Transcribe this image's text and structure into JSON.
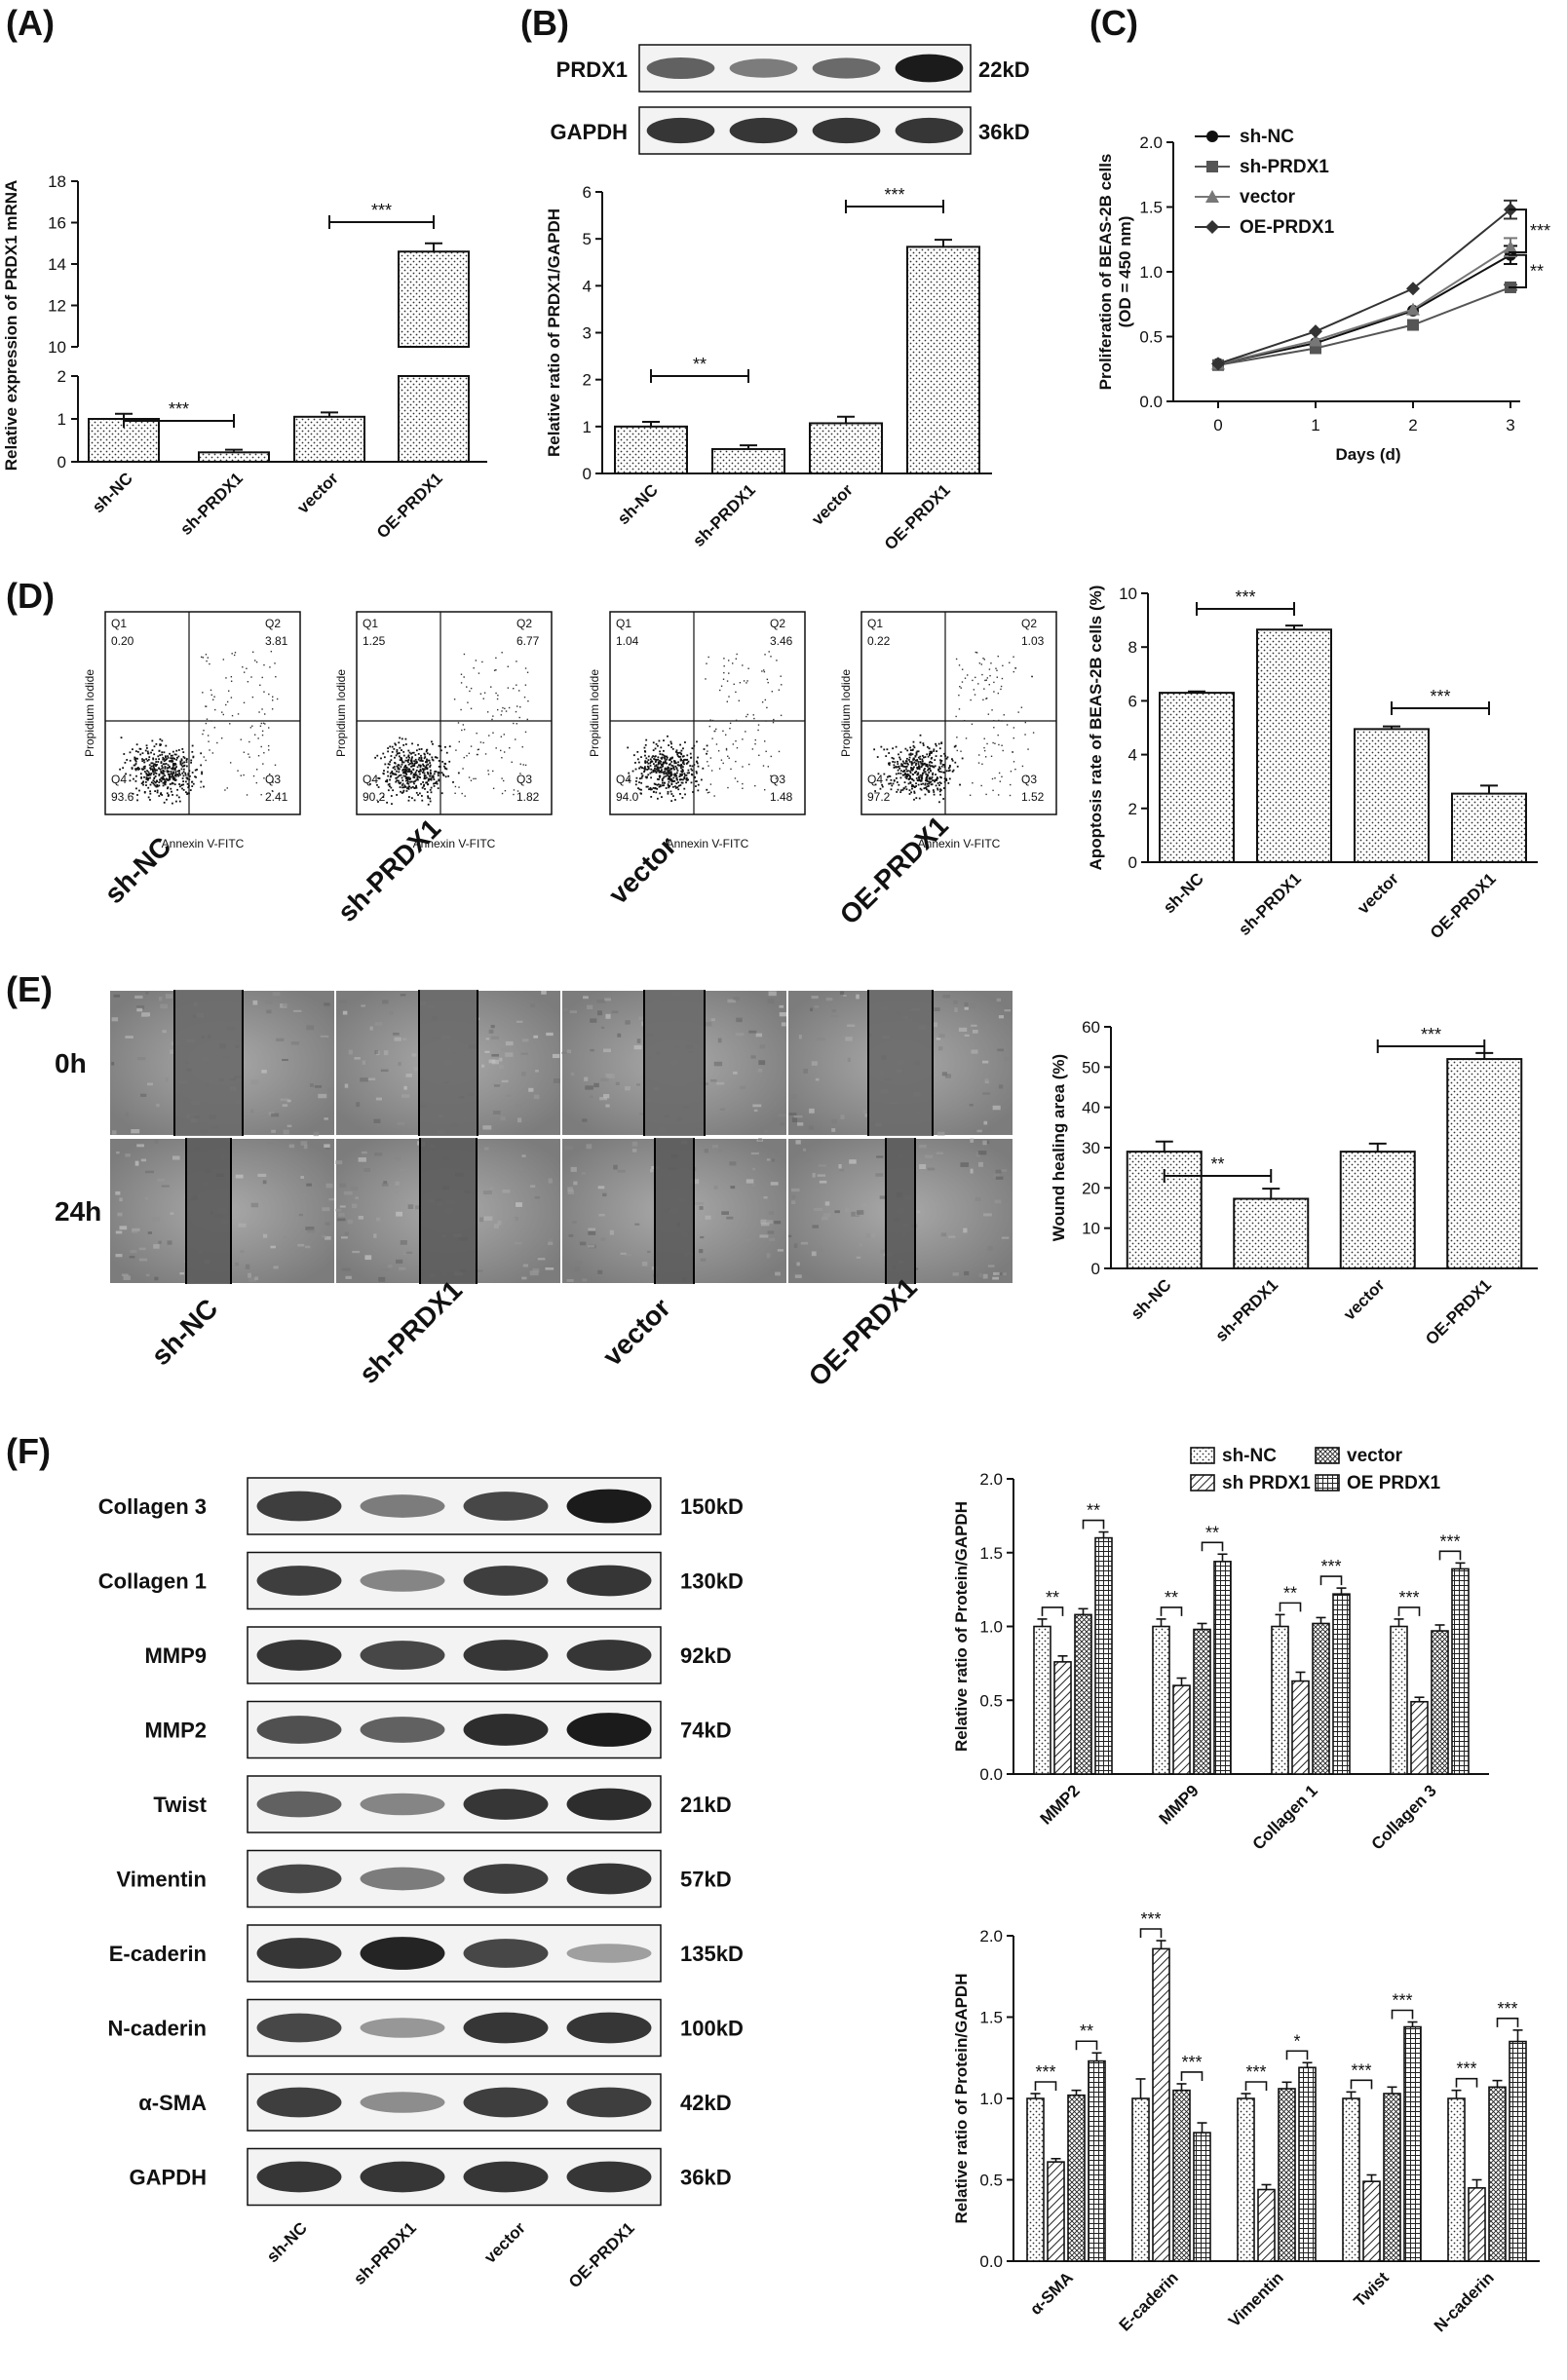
{
  "panels": {
    "A": "(A)",
    "B": "(B)",
    "C": "(C)",
    "D": "(D)",
    "E": "(E)",
    "F": "(F)"
  },
  "groups": [
    "sh-NC",
    "sh-PRDX1",
    "vector",
    "OE-PRDX1"
  ],
  "colors": {
    "ink": "#111111",
    "bar_fill": "#ffffff",
    "hatch": "#444444"
  },
  "blotB": {
    "bands": [
      {
        "name": "PRDX1",
        "kd": "22kD",
        "intensity": [
          0.6,
          0.45,
          0.55,
          1.0
        ]
      },
      {
        "name": "GAPDH",
        "kd": "36kD",
        "intensity": [
          0.85,
          0.85,
          0.85,
          0.85
        ]
      }
    ]
  },
  "flow": {
    "xlabel": "Annexin V-FITC",
    "ylabel": "Propidium Iodide",
    "quadrant_names": [
      "Q1",
      "Q2",
      "Q3",
      "Q4"
    ],
    "plots": [
      {
        "Q1": "0.20",
        "Q2": "3.81",
        "Q3": "2.41",
        "Q4": "93.6"
      },
      {
        "Q1": "1.25",
        "Q2": "6.77",
        "Q3": "1.82",
        "Q4": "90.2"
      },
      {
        "Q1": "1.04",
        "Q2": "3.46",
        "Q3": "1.48",
        "Q4": "94.0"
      },
      {
        "Q1": "0.22",
        "Q2": "1.03",
        "Q3": "1.52",
        "Q4": "97.2"
      }
    ]
  },
  "wound": {
    "rows": [
      "0h",
      "24h"
    ]
  },
  "blotF": {
    "bands": [
      {
        "name": "Collagen 3",
        "kd": "150kD",
        "intensity": [
          0.8,
          0.45,
          0.75,
          1.0
        ]
      },
      {
        "name": "Collagen 1",
        "kd": "130kD",
        "intensity": [
          0.8,
          0.4,
          0.8,
          0.85
        ]
      },
      {
        "name": "MMP9",
        "kd": "92kD",
        "intensity": [
          0.85,
          0.75,
          0.85,
          0.85
        ]
      },
      {
        "name": "MMP2",
        "kd": "74kD",
        "intensity": [
          0.7,
          0.6,
          0.9,
          1.0
        ]
      },
      {
        "name": "Twist",
        "kd": "21kD",
        "intensity": [
          0.6,
          0.4,
          0.85,
          0.9
        ]
      },
      {
        "name": "Vimentin",
        "kd": "57kD",
        "intensity": [
          0.75,
          0.45,
          0.8,
          0.85
        ]
      },
      {
        "name": "E-caderin",
        "kd": "135kD",
        "intensity": [
          0.85,
          0.95,
          0.75,
          0.25
        ]
      },
      {
        "name": "N-caderin",
        "kd": "100kD",
        "intensity": [
          0.75,
          0.3,
          0.85,
          0.85
        ]
      },
      {
        "name": "α-SMA",
        "kd": "42kD",
        "intensity": [
          0.8,
          0.35,
          0.8,
          0.8
        ]
      },
      {
        "name": "GAPDH",
        "kd": "36kD",
        "intensity": [
          0.85,
          0.85,
          0.85,
          0.85
        ]
      }
    ]
  },
  "chart_data": [
    {
      "id": "A",
      "type": "bar",
      "ylabel": "Relative expression of PRDX1 mRNA",
      "categories": [
        "sh-NC",
        "sh-PRDX1",
        "vector",
        "OE-PRDX1"
      ],
      "values": [
        1.0,
        0.22,
        1.05,
        14.6
      ],
      "errors": [
        0.12,
        0.06,
        0.1,
        0.4
      ],
      "axis_break": [
        2,
        10
      ],
      "yticks_lower": [
        "0",
        "1",
        "2"
      ],
      "yticks_upper": [
        "10",
        "12",
        "14",
        "16",
        "18"
      ],
      "significance": [
        {
          "from": 0,
          "to": 1,
          "label": "***"
        },
        {
          "from": 2,
          "to": 3,
          "label": "***"
        }
      ]
    },
    {
      "id": "B",
      "type": "bar",
      "ylabel": "Relative ratio of PRDX1/GAPDH",
      "categories": [
        "sh-NC",
        "sh-PRDX1",
        "vector",
        "OE-PRDX1"
      ],
      "values": [
        1.0,
        0.52,
        1.07,
        4.83
      ],
      "errors": [
        0.1,
        0.08,
        0.14,
        0.15
      ],
      "ylim": [
        0,
        6
      ],
      "yticks": [
        "0",
        "1",
        "2",
        "3",
        "4",
        "5",
        "6"
      ],
      "significance": [
        {
          "from": 0,
          "to": 1,
          "label": "**"
        },
        {
          "from": 2,
          "to": 3,
          "label": "***"
        }
      ]
    },
    {
      "id": "C",
      "type": "line",
      "ylabel": "Proliferation of BEAS-2B cells",
      "ylabel2": "(OD = 450 nm)",
      "xlabel": "Days (d)",
      "x": [
        0,
        1,
        2,
        3
      ],
      "xticks": [
        "0",
        "1",
        "2",
        "3"
      ],
      "ylim": [
        0,
        2.0
      ],
      "yticks": [
        "0.0",
        "0.5",
        "1.0",
        "1.5",
        "2.0"
      ],
      "series": [
        {
          "name": "sh-NC",
          "marker": "circle",
          "values": [
            0.29,
            0.45,
            0.7,
            1.13
          ],
          "errors": [
            0,
            0,
            0,
            0.07
          ]
        },
        {
          "name": "sh-PRDX1",
          "marker": "square",
          "values": [
            0.28,
            0.41,
            0.59,
            0.88
          ],
          "errors": [
            0,
            0,
            0,
            0.02
          ]
        },
        {
          "name": "vector",
          "marker": "triangle",
          "values": [
            0.29,
            0.47,
            0.71,
            1.19
          ],
          "errors": [
            0,
            0,
            0,
            0.07
          ]
        },
        {
          "name": "OE-PRDX1",
          "marker": "diamond",
          "values": [
            0.29,
            0.54,
            0.87,
            1.48
          ],
          "errors": [
            0,
            0,
            0,
            0.07
          ]
        }
      ],
      "significance": [
        "***",
        "**"
      ]
    },
    {
      "id": "D",
      "type": "bar",
      "ylabel": "Apoptosis rate of BEAS-2B cells (%)",
      "categories": [
        "sh-NC",
        "sh-PRDX1",
        "vector",
        "OE-PRDX1"
      ],
      "values": [
        6.3,
        8.65,
        4.95,
        2.55
      ],
      "errors": [
        0.05,
        0.15,
        0.1,
        0.3
      ],
      "ylim": [
        0,
        10
      ],
      "yticks": [
        "0",
        "2",
        "4",
        "6",
        "8",
        "10"
      ],
      "significance": [
        {
          "from": 0,
          "to": 1,
          "label": "***"
        },
        {
          "from": 2,
          "to": 3,
          "label": "***"
        }
      ]
    },
    {
      "id": "E",
      "type": "bar",
      "ylabel": "Wound healing area (%)",
      "categories": [
        "sh-NC",
        "sh-PRDX1",
        "vector",
        "OE-PRDX1"
      ],
      "values": [
        29,
        17.3,
        29,
        52
      ],
      "errors": [
        2.5,
        2.5,
        2,
        1.5
      ],
      "ylim": [
        0,
        60
      ],
      "yticks": [
        "0",
        "10",
        "20",
        "30",
        "40",
        "50",
        "60"
      ],
      "significance": [
        {
          "from": 0,
          "to": 1,
          "label": "**"
        },
        {
          "from": 2,
          "to": 3,
          "label": "***"
        }
      ]
    },
    {
      "id": "F1",
      "type": "bar",
      "ylabel": "Relative ratio of Protein/GAPDH",
      "categories": [
        "MMP2",
        "MMP9",
        "Collagen 1",
        "Collagen 3"
      ],
      "legend": [
        "sh-NC",
        "sh PRDX1",
        "vector",
        "OE PRDX1"
      ],
      "ylim": [
        0,
        2.0
      ],
      "yticks": [
        "0.0",
        "0.5",
        "1.0",
        "1.5",
        "2.0"
      ],
      "series": [
        {
          "name": "sh-NC",
          "values": [
            1.0,
            1.0,
            1.0,
            1.0
          ],
          "errors": [
            0.05,
            0.05,
            0.08,
            0.05
          ]
        },
        {
          "name": "sh PRDX1",
          "values": [
            0.76,
            0.6,
            0.63,
            0.49
          ],
          "errors": [
            0.04,
            0.05,
            0.06,
            0.03
          ]
        },
        {
          "name": "vector",
          "values": [
            1.08,
            0.98,
            1.02,
            0.97
          ],
          "errors": [
            0.04,
            0.04,
            0.04,
            0.04
          ]
        },
        {
          "name": "OE PRDX1",
          "values": [
            1.6,
            1.44,
            1.22,
            1.39
          ],
          "errors": [
            0.04,
            0.05,
            0.04,
            0.04
          ]
        }
      ],
      "significance": [
        [
          "**",
          "**"
        ],
        [
          "**",
          "**"
        ],
        [
          "**",
          "***"
        ],
        [
          "***",
          "***"
        ]
      ]
    },
    {
      "id": "F2",
      "type": "bar",
      "ylabel": "Relative ratio of Protein/GAPDH",
      "categories": [
        "α-SMA",
        "E-caderin",
        "Vimentin",
        "Twist",
        "N-caderin"
      ],
      "ylim": [
        0,
        2.0
      ],
      "yticks": [
        "0.0",
        "0.5",
        "1.0",
        "1.5",
        "2.0"
      ],
      "series": [
        {
          "name": "sh-NC",
          "values": [
            1.0,
            1.0,
            1.0,
            1.0,
            1.0
          ],
          "errors": [
            0.03,
            0.12,
            0.03,
            0.04,
            0.05
          ]
        },
        {
          "name": "sh PRDX1",
          "values": [
            0.61,
            1.92,
            0.44,
            0.49,
            0.45
          ],
          "errors": [
            0.02,
            0.05,
            0.03,
            0.04,
            0.05
          ]
        },
        {
          "name": "vector",
          "values": [
            1.02,
            1.05,
            1.06,
            1.03,
            1.07
          ],
          "errors": [
            0.03,
            0.04,
            0.04,
            0.04,
            0.04
          ]
        },
        {
          "name": "OE PRDX1",
          "values": [
            1.23,
            0.79,
            1.19,
            1.44,
            1.35
          ],
          "errors": [
            0.05,
            0.06,
            0.03,
            0.03,
            0.07
          ]
        }
      ],
      "significance": [
        [
          "***",
          "**"
        ],
        [
          "***",
          "***"
        ],
        [
          "***",
          "*"
        ],
        [
          "***",
          "***"
        ],
        [
          "***",
          "***"
        ]
      ]
    }
  ]
}
